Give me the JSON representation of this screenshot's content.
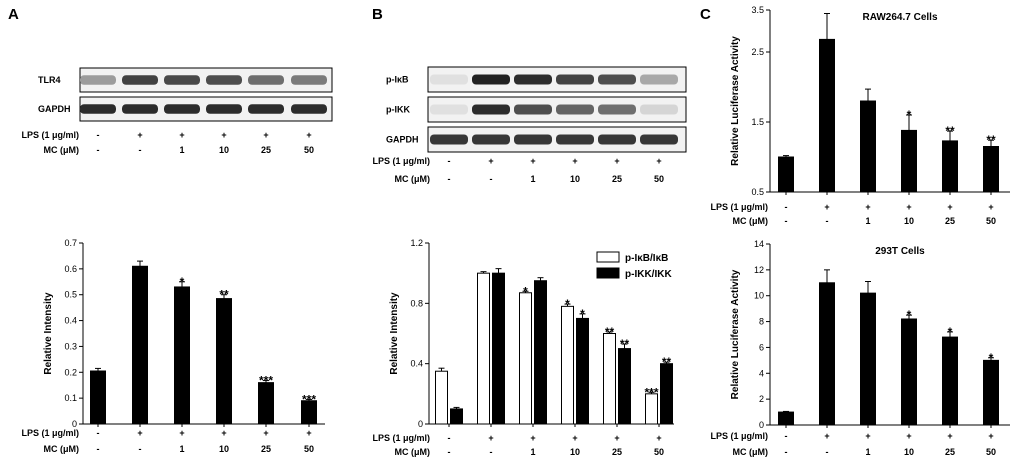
{
  "panels": {
    "a": "A",
    "b": "B",
    "c": "C"
  },
  "blots": {
    "a": {
      "rows": [
        {
          "label": "TLR4",
          "intensity": [
            0.35,
            0.75,
            0.72,
            0.7,
            0.55,
            0.5
          ]
        },
        {
          "label": "GAPDH",
          "intensity": [
            0.85,
            0.85,
            0.85,
            0.85,
            0.85,
            0.85
          ]
        }
      ]
    },
    "b": {
      "rows": [
        {
          "label": "p-IκB",
          "intensity": [
            0.05,
            0.9,
            0.85,
            0.75,
            0.7,
            0.3
          ]
        },
        {
          "label": "p-IKK",
          "intensity": [
            0.05,
            0.85,
            0.7,
            0.6,
            0.55,
            0.1
          ]
        },
        {
          "label": "GAPDH",
          "intensity": [
            0.8,
            0.8,
            0.8,
            0.8,
            0.8,
            0.8
          ]
        }
      ]
    }
  },
  "conditions": {
    "lps_label": "LPS (1 μg/ml)",
    "mc_label": "MC (μM)",
    "lps": [
      "-",
      "+",
      "+",
      "+",
      "+",
      "+"
    ],
    "mc": [
      "-",
      "-",
      "1",
      "10",
      "25",
      "50"
    ]
  },
  "chart_data": [
    {
      "id": "a",
      "type": "bar",
      "title": "",
      "ylabel": "Relative Intensity",
      "ylim": [
        0,
        0.7
      ],
      "yticks": [
        "0",
        "0.1",
        "0.2",
        "0.3",
        "0.4",
        "0.5",
        "0.6",
        "0.7"
      ],
      "categories": [
        "1",
        "2",
        "3",
        "4",
        "5",
        "6"
      ],
      "series": [
        {
          "fill": "#000000",
          "values": [
            0.205,
            0.61,
            0.53,
            0.485,
            0.16,
            0.09
          ],
          "errors": [
            0.01,
            0.02,
            0.02,
            0.015,
            0.008,
            0.005
          ],
          "significance": [
            "",
            "",
            "*",
            "**",
            "***",
            "***"
          ]
        }
      ]
    },
    {
      "id": "b",
      "type": "bar",
      "title": "",
      "ylabel": "Relative Intensity",
      "ylim": [
        0,
        1.2
      ],
      "yticks": [
        "0",
        "0.4",
        "0.8",
        "1.2"
      ],
      "categories": [
        "1",
        "2",
        "3",
        "4",
        "5",
        "6"
      ],
      "legend_position": "top-right",
      "series": [
        {
          "name": "p-IκB/IκB",
          "fill": "#ffffff",
          "values": [
            0.35,
            1.0,
            0.87,
            0.78,
            0.6,
            0.2
          ],
          "errors": [
            0.02,
            0.01,
            0.01,
            0.015,
            0.01,
            0.01
          ],
          "significance": [
            "",
            "",
            "*",
            "*",
            "**",
            "***"
          ]
        },
        {
          "name": "p-IKK/IKK",
          "fill": "#000000",
          "values": [
            0.1,
            1.0,
            0.95,
            0.7,
            0.5,
            0.4
          ],
          "errors": [
            0.01,
            0.03,
            0.02,
            0.03,
            0.03,
            0.01
          ],
          "significance": [
            "",
            "",
            "",
            "*",
            "**",
            "**"
          ]
        }
      ]
    },
    {
      "id": "c1",
      "type": "bar",
      "title": "RAW264.7 Cells",
      "ylabel": "Relative Luciferase Activity",
      "ylim": [
        0.5,
        3.1
      ],
      "yticks": [
        "0.5",
        "1.5",
        "2.5",
        "3.5"
      ],
      "ytick_values": [
        0.5,
        1.5,
        2.5,
        3.5
      ],
      "categories": [
        "1",
        "2",
        "3",
        "4",
        "5",
        "6"
      ],
      "series": [
        {
          "fill": "#000000",
          "values": [
            1.0,
            2.68,
            1.8,
            1.38,
            1.23,
            1.15
          ],
          "errors": [
            0.02,
            0.37,
            0.17,
            0.22,
            0.14,
            0.09
          ],
          "significance": [
            "",
            "",
            "",
            "*",
            "**",
            "**"
          ]
        }
      ]
    },
    {
      "id": "c2",
      "type": "bar",
      "title": "293T Cells",
      "ylabel": "Relative Luciferase Activity",
      "ylim": [
        0,
        14
      ],
      "yticks": [
        "0",
        "2",
        "4",
        "6",
        "8",
        "10",
        "12",
        "14"
      ],
      "categories": [
        "1",
        "2",
        "3",
        "4",
        "5",
        "6"
      ],
      "series": [
        {
          "fill": "#000000",
          "values": [
            1.0,
            11.0,
            10.2,
            8.2,
            6.8,
            5.0
          ],
          "errors": [
            0.05,
            1.0,
            0.9,
            0.3,
            0.4,
            0.2
          ],
          "significance": [
            "",
            "",
            "",
            "*",
            "*",
            "*"
          ]
        }
      ]
    }
  ]
}
